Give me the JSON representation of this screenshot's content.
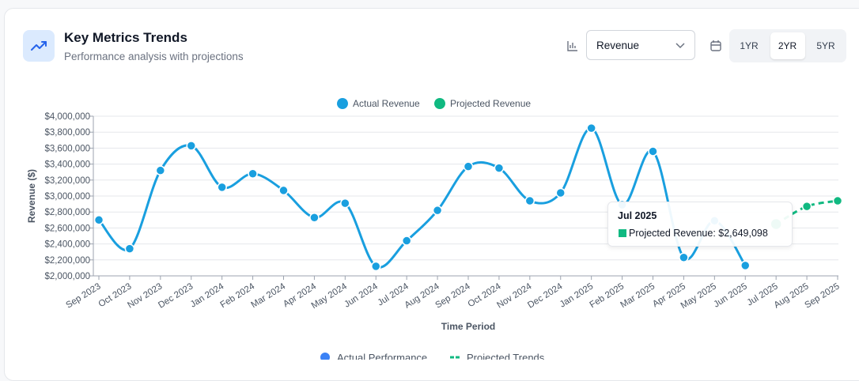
{
  "header": {
    "title": "Key Metrics Trends",
    "subtitle": "Performance analysis with projections"
  },
  "controls": {
    "metric": "Revenue",
    "ranges": [
      "1YR",
      "2YR",
      "5YR"
    ],
    "active_range": "2YR"
  },
  "chart_data": {
    "type": "line",
    "categories": [
      "Sep 2023",
      "Oct 2023",
      "Nov 2023",
      "Dec 2023",
      "Jan 2024",
      "Feb 2024",
      "Mar 2024",
      "Apr 2024",
      "May 2024",
      "Jun 2024",
      "Jul 2024",
      "Aug 2024",
      "Sep 2024",
      "Oct 2024",
      "Nov 2024",
      "Dec 2024",
      "Jan 2025",
      "Feb 2025",
      "Mar 2025",
      "Apr 2025",
      "May 2025",
      "Jun 2025",
      "Jul 2025",
      "Aug 2025",
      "Sep 2025"
    ],
    "series": [
      {
        "name": "Actual Revenue",
        "color": "#199fdf",
        "dashed": false,
        "values": [
          2700000,
          2340000,
          3320000,
          3630000,
          3110000,
          3280000,
          3070000,
          2730000,
          2910000,
          2120000,
          2440000,
          2820000,
          3370000,
          3350000,
          2940000,
          3040000,
          3850000,
          2890000,
          3560000,
          2230000,
          2690000,
          2130000,
          null,
          null,
          null
        ]
      },
      {
        "name": "Projected Revenue",
        "color": "#10b981",
        "dashed": true,
        "values": [
          null,
          null,
          null,
          null,
          null,
          null,
          null,
          null,
          null,
          null,
          null,
          null,
          null,
          null,
          null,
          null,
          null,
          null,
          null,
          null,
          null,
          null,
          2649098,
          2870000,
          2940000
        ]
      }
    ],
    "ylim": [
      2000000,
      4000000
    ],
    "yticks": [
      {
        "value": 2000000,
        "label": "$2,000,000"
      },
      {
        "value": 2200000,
        "label": "$2,200,000"
      },
      {
        "value": 2400000,
        "label": "$2,400,000"
      },
      {
        "value": 2600000,
        "label": "$2,600,000"
      },
      {
        "value": 2800000,
        "label": "$2,800,000"
      },
      {
        "value": 3000000,
        "label": "$3,000,000"
      },
      {
        "value": 3200000,
        "label": "$3,200,000"
      },
      {
        "value": 3400000,
        "label": "$3,400,000"
      },
      {
        "value": 3600000,
        "label": "$3,600,000"
      },
      {
        "value": 3800000,
        "label": "$3,800,000"
      },
      {
        "value": 4000000,
        "label": "$4,000,000"
      }
    ],
    "y_label": "Revenue ($)",
    "x_label": "Time Period",
    "grid": true,
    "legend": "top"
  },
  "tooltip": {
    "title": "Jul 2025",
    "text": "Projected Revenue: $2,649,098"
  },
  "footer_legend": [
    {
      "name": "Actual Performance",
      "color": "#3b82f6"
    },
    {
      "name": "Projected Trends",
      "color": "#10b981"
    }
  ]
}
